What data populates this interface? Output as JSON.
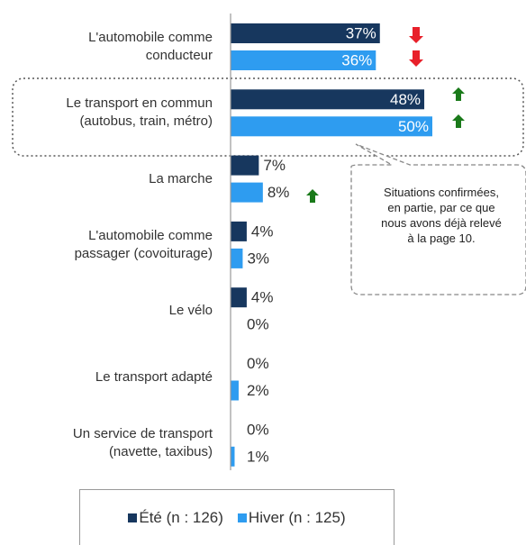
{
  "chart_data": {
    "type": "bar",
    "orientation": "horizontal",
    "categories": [
      "L'automobile comme\nconducteur",
      "Le transport en commun\n(autobus, train, métro)",
      "La marche",
      "L'automobile comme\npassager (covoiturage)",
      "Le vélo",
      "Le transport adapté",
      "Un service de transport\n(navette, taxibus)"
    ],
    "series": [
      {
        "name": "Été (n : 126)",
        "color": "#17375e",
        "values": [
          37,
          48,
          7,
          4,
          4,
          0,
          0
        ],
        "value_labels": [
          "37%",
          "48%",
          "7%",
          "4%",
          "4%",
          "0%",
          "0%"
        ]
      },
      {
        "name": "Hiver (n : 125)",
        "color": "#2e9cf0",
        "values": [
          36,
          50,
          8,
          3,
          0,
          2,
          1
        ],
        "value_labels": [
          "36%",
          "50%",
          "8%",
          "3%",
          "0%",
          "2%",
          "1%"
        ]
      }
    ],
    "xlim": [
      0,
      50
    ],
    "annotation": "Situations confirmées, en partie, par ce que nous avons déjà relevé à la page 10."
  }
}
